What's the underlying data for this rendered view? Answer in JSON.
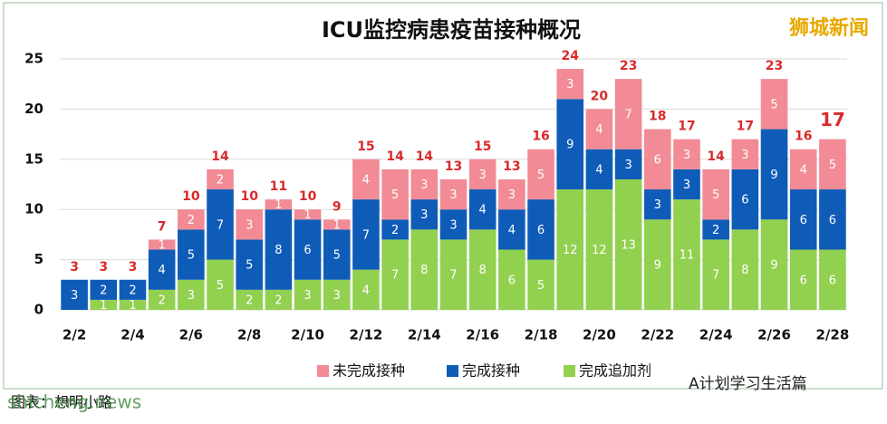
{
  "chart_data": {
    "type": "stacked_bar",
    "title": "ICU监控病患疫苗接种概况",
    "watermark": "狮城新闻",
    "source": "图表：想明小路",
    "site": "shicheng.news",
    "account": "A计划学习生活篇",
    "categories": [
      "2/2",
      null,
      "2/4",
      null,
      "2/6",
      null,
      "2/8",
      null,
      "2/10",
      null,
      "2/12",
      null,
      "2/14",
      null,
      "2/16",
      null,
      "2/18",
      null,
      "2/20",
      null,
      "2/22",
      null,
      "2/24",
      null,
      "2/26",
      null,
      "2/28"
    ],
    "series": [
      {
        "name": "完成追加剂",
        "color": "#92d050",
        "values": [
          0,
          1,
          1,
          2,
          3,
          5,
          2,
          2,
          3,
          3,
          4,
          7,
          8,
          7,
          8,
          6,
          5,
          12,
          12,
          13,
          9,
          11,
          7,
          8,
          9,
          6,
          6
        ]
      },
      {
        "name": "完成接种",
        "color": "#0f5cb8",
        "values": [
          3,
          2,
          2,
          4,
          5,
          7,
          5,
          8,
          6,
          5,
          7,
          2,
          3,
          3,
          4,
          4,
          6,
          9,
          4,
          3,
          3,
          3,
          2,
          6,
          9,
          6,
          6
        ]
      },
      {
        "name": "未完成接种",
        "color": "#f28b95",
        "values": [
          0,
          0,
          0,
          1,
          2,
          2,
          3,
          1,
          1,
          1,
          4,
          5,
          3,
          3,
          3,
          3,
          5,
          3,
          4,
          7,
          6,
          3,
          5,
          3,
          5,
          4,
          5
        ]
      }
    ],
    "totals": [
      3,
      3,
      3,
      7,
      10,
      14,
      10,
      11,
      10,
      9,
      15,
      14,
      14,
      13,
      15,
      13,
      16,
      24,
      20,
      23,
      18,
      17,
      14,
      17,
      23,
      16,
      17
    ],
    "ylim": [
      0,
      25
    ],
    "yticks": [
      0,
      5,
      10,
      15,
      20,
      25
    ],
    "legend": "bottom"
  }
}
